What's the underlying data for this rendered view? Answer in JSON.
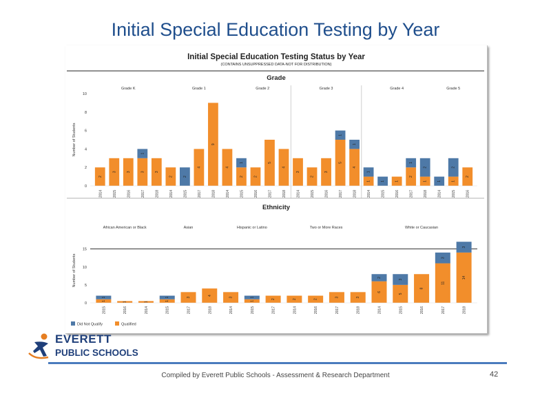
{
  "slide": {
    "title": "Initial Special Education Testing by Year",
    "footer": "Compiled  by Everett Public Schools - Assessment & Research Department",
    "page_number": "42"
  },
  "panel": {
    "title": "Initial Special Education Testing Status by Year",
    "subtitle": "(CONTAINS UNSUPPRESSED DATA-NOT FOR DISTRIBUTION)"
  },
  "logo": {
    "line1": "EVERETT",
    "line2": "PUBLIC SCHOOLS"
  },
  "colors": {
    "did_not_qualify": "#4e79a7",
    "qualified": "#f28e2b",
    "title": "#1f4e8c"
  },
  "legend": [
    {
      "label": "Did Not Qualify",
      "color": "#4e79a7"
    },
    {
      "label": "Qualified",
      "color": "#f28e2b"
    }
  ],
  "chart_data": [
    {
      "type": "bar",
      "stacked": true,
      "title": "Grade",
      "ylabel": "Number of Students",
      "ylim": [
        0,
        10
      ],
      "yticks": [
        0,
        2,
        4,
        6,
        8,
        10
      ],
      "grid": false,
      "groups": [
        {
          "label": "Grade K",
          "categories": [
            "2014",
            "2015",
            "2016",
            "2017",
            "2018"
          ],
          "qualified": [
            2,
            3,
            3,
            3,
            3
          ],
          "did_not_qualify": [
            0,
            0,
            0,
            1,
            0
          ]
        },
        {
          "label": "Grade 1",
          "categories": [
            "2014",
            "2015",
            "2017",
            "2018",
            "2014"
          ],
          "qualified": [
            2,
            0,
            4,
            9,
            4
          ],
          "did_not_qualify": [
            0,
            2,
            0,
            0,
            0
          ]
        },
        {
          "label": "Grade 2",
          "categories": [
            "2015",
            "2016",
            "2017",
            "2018"
          ],
          "qualified": [
            2,
            2,
            5,
            4
          ],
          "did_not_qualify": [
            1,
            0,
            0,
            0
          ]
        },
        {
          "label": "Grade 3",
          "categories": [
            "2014",
            "2015",
            "2016",
            "2017",
            "2018"
          ],
          "qualified": [
            3,
            2,
            3,
            5,
            4
          ],
          "did_not_qualify": [
            0,
            0,
            0,
            1,
            1
          ]
        },
        {
          "label": "Grade 4",
          "categories": [
            "2014",
            "2015",
            "2016",
            "2017",
            "2018"
          ],
          "qualified": [
            1,
            0,
            1,
            2,
            1
          ],
          "did_not_qualify": [
            1,
            1,
            0,
            1,
            2
          ]
        },
        {
          "label": "Grade 5",
          "categories": [
            "2014",
            "2015",
            "2016"
          ],
          "qualified": [
            0,
            1,
            2
          ],
          "did_not_qualify": [
            1,
            2,
            0
          ]
        }
      ]
    },
    {
      "type": "bar",
      "stacked": true,
      "title": "Ethnicity",
      "ylabel": "Number of Students",
      "ylim": [
        0,
        18
      ],
      "yticks": [
        0,
        5,
        10,
        15
      ],
      "reference_line": 15,
      "grid": false,
      "groups": [
        {
          "label": "African American or Black",
          "categories": [
            "2015",
            "2016",
            "2014"
          ],
          "qualified": [
            1,
            0.5,
            0.5
          ],
          "did_not_qualify": [
            1,
            0,
            0
          ]
        },
        {
          "label": "Asian",
          "categories": [
            "2015",
            "2017",
            "2018"
          ],
          "qualified": [
            1,
            3,
            4
          ],
          "did_not_qualify": [
            1,
            0,
            0
          ]
        },
        {
          "label": "Hispanic or Latino",
          "categories": [
            "2014",
            "2015",
            "2017"
          ],
          "qualified": [
            3,
            1,
            2
          ],
          "did_not_qualify": [
            0,
            1,
            0
          ]
        },
        {
          "label": "Two or More Races",
          "categories": [
            "2014",
            "2016",
            "2017",
            "2018"
          ],
          "qualified": [
            2,
            2,
            3,
            3
          ],
          "did_not_qualify": [
            0,
            0,
            0,
            0
          ]
        },
        {
          "label": "White or Caucasian",
          "categories": [
            "2014",
            "2015",
            "2016",
            "2017",
            "2018"
          ],
          "qualified": [
            6,
            5,
            8,
            11,
            14
          ],
          "did_not_qualify": [
            2,
            3,
            0,
            3,
            3
          ]
        }
      ],
      "label_values": {
        "qualified": [
          1,
          "",
          "",
          1,
          3,
          4,
          3,
          1,
          "",
          "",
          "",
          "",
          "",
          6,
          5,
          8,
          11,
          14
        ],
        "did_not_qualify": [
          1,
          "",
          "",
          1,
          "",
          "",
          "",
          1,
          "",
          "",
          "",
          "",
          "",
          2,
          3,
          "",
          3,
          3
        ]
      }
    }
  ]
}
